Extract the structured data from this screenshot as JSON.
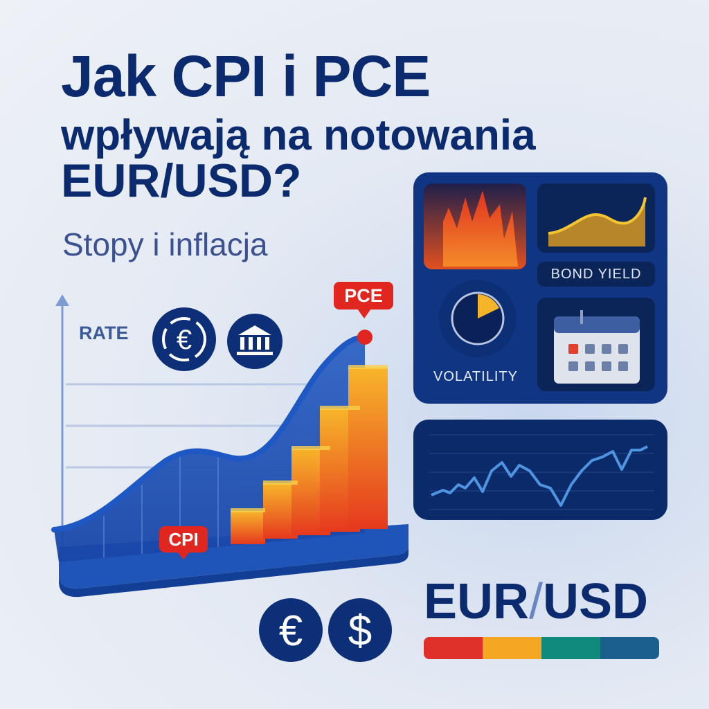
{
  "title": {
    "line1": "Jak CPI i PCE",
    "line2": "wpływają na notowania",
    "line3": "EUR/USD?",
    "subtitle": "Stopy i inflacja"
  },
  "chart": {
    "axis_label": "RATE",
    "labels": {
      "cpi": "CPI",
      "pce": "PCE"
    }
  },
  "panel": {
    "bond_yield_label": "BOND YIELD",
    "volatility_label": "VOLATILITY",
    "icons": [
      "fire-icon",
      "bond-yield-chart-icon",
      "gauge-icon",
      "calendar-icon",
      "line-chart-icon"
    ]
  },
  "icons": [
    "euro-laurel-icon",
    "bank-icon",
    "euro-icon",
    "dollar-icon"
  ],
  "pair": {
    "base": "EUR",
    "sep": "/",
    "quote": "USD"
  },
  "colors": {
    "navy": "#0c2b6e",
    "accent_red": "#e1261f",
    "bar_segments": [
      "#e0302a",
      "#f5a623",
      "#118a7e",
      "#1b5f8f"
    ]
  }
}
